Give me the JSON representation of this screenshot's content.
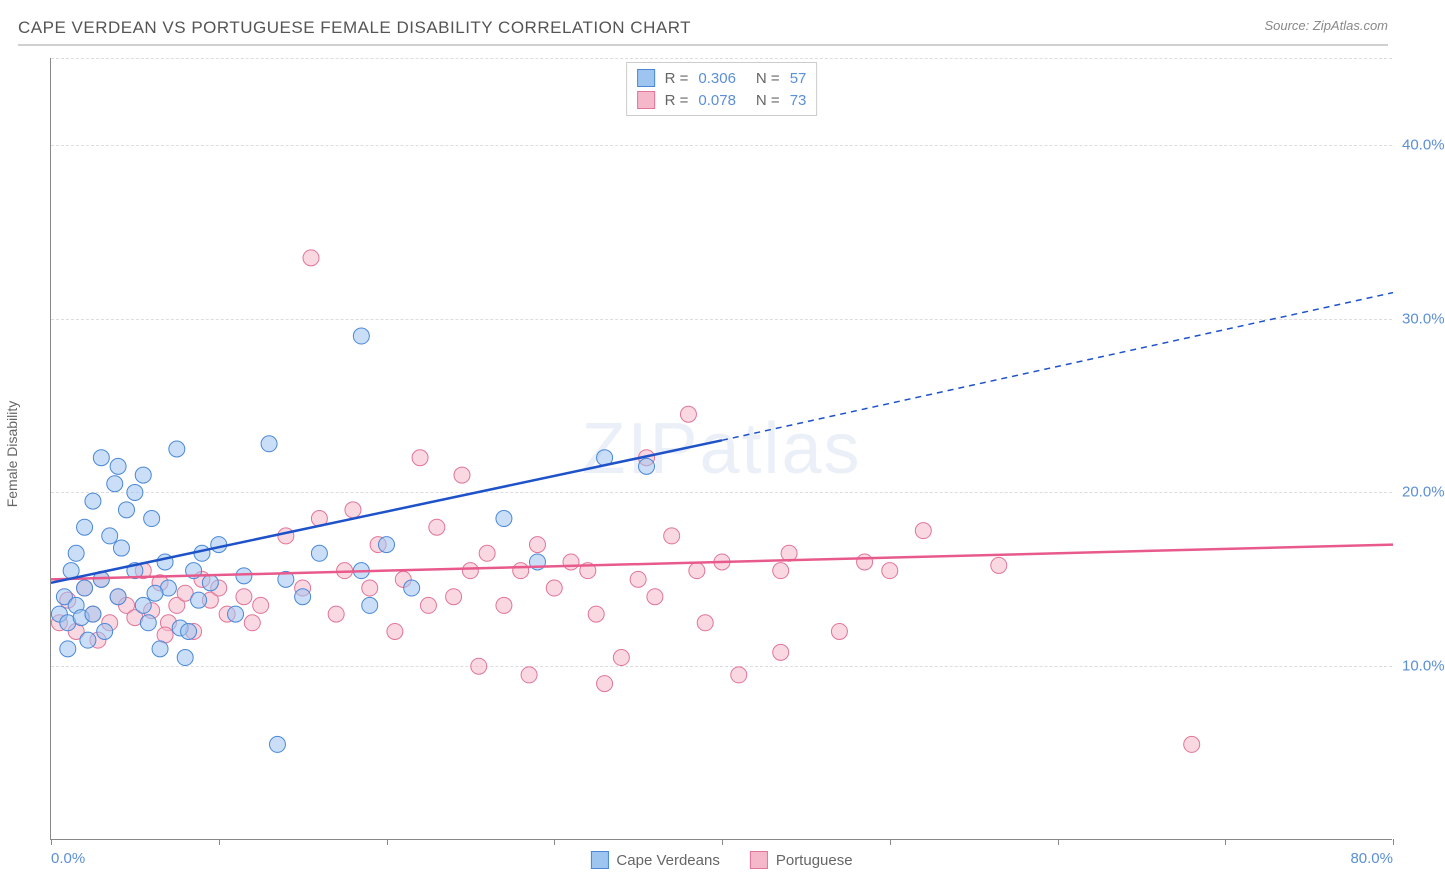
{
  "title": "CAPE VERDEAN VS PORTUGUESE FEMALE DISABILITY CORRELATION CHART",
  "source_label": "Source: ZipAtlas.com",
  "ylabel": "Female Disability",
  "watermark": "ZIPatlas",
  "chart": {
    "type": "scatter",
    "xlim": [
      0,
      80
    ],
    "ylim": [
      0,
      45
    ],
    "xtick_positions": [
      0,
      10,
      20,
      30,
      40,
      50,
      60,
      70,
      80
    ],
    "xtick_labels": {
      "0": "0.0%",
      "80": "80.0%"
    },
    "ytick_positions": [
      10,
      20,
      30,
      40
    ],
    "ytick_labels": [
      "10.0%",
      "20.0%",
      "30.0%",
      "40.0%"
    ],
    "grid_color": "#dddddd",
    "axis_color": "#888888",
    "label_color": "#5b8fd6",
    "background_color": "#ffffff",
    "marker_radius": 8,
    "marker_opacity": 0.55,
    "line_width_solid": 2.5,
    "line_width_dash": 1.5
  },
  "series": {
    "cape_verdeans": {
      "label": "Cape Verdeans",
      "fill": "#9ec5f0",
      "stroke": "#4a88d6",
      "line_color": "#1e52c8",
      "r_value": "0.306",
      "n_value": "57",
      "trend_start": {
        "x": 0,
        "y": 14.8
      },
      "trend_solid_end": {
        "x": 40,
        "y": 23.0
      },
      "trend_dash_end": {
        "x": 80,
        "y": 31.5
      },
      "points": [
        [
          0.5,
          13.0
        ],
        [
          0.8,
          14.0
        ],
        [
          1.0,
          12.5
        ],
        [
          1.2,
          15.5
        ],
        [
          1.5,
          13.5
        ],
        [
          1.5,
          16.5
        ],
        [
          1.8,
          12.8
        ],
        [
          2.0,
          14.5
        ],
        [
          2.0,
          18.0
        ],
        [
          2.5,
          13.0
        ],
        [
          2.5,
          19.5
        ],
        [
          3.0,
          15.0
        ],
        [
          3.0,
          22.0
        ],
        [
          3.5,
          17.5
        ],
        [
          3.8,
          20.5
        ],
        [
          4.0,
          14.0
        ],
        [
          4.0,
          21.5
        ],
        [
          4.5,
          19.0
        ],
        [
          5.0,
          15.5
        ],
        [
          5.0,
          20.0
        ],
        [
          5.5,
          13.5
        ],
        [
          5.5,
          21.0
        ],
        [
          6.0,
          18.5
        ],
        [
          6.5,
          11.0
        ],
        [
          6.8,
          16.0
        ],
        [
          7.0,
          14.5
        ],
        [
          7.5,
          22.5
        ],
        [
          7.7,
          12.2
        ],
        [
          8.0,
          10.5
        ],
        [
          8.5,
          15.5
        ],
        [
          8.8,
          13.8
        ],
        [
          9.5,
          14.8
        ],
        [
          10.0,
          17.0
        ],
        [
          11.0,
          13.0
        ],
        [
          13.0,
          22.8
        ],
        [
          13.5,
          5.5
        ],
        [
          14.0,
          15.0
        ],
        [
          15.0,
          14.0
        ],
        [
          18.5,
          29.0
        ],
        [
          18.5,
          15.5
        ],
        [
          19.0,
          13.5
        ],
        [
          20.0,
          17.0
        ],
        [
          21.5,
          14.5
        ],
        [
          27.0,
          18.5
        ],
        [
          29.0,
          16.0
        ],
        [
          33.0,
          22.0
        ],
        [
          35.5,
          21.5
        ],
        [
          2.2,
          11.5
        ],
        [
          4.2,
          16.8
        ],
        [
          6.2,
          14.2
        ],
        [
          1.0,
          11.0
        ],
        [
          3.2,
          12.0
        ],
        [
          5.8,
          12.5
        ],
        [
          8.2,
          12.0
        ],
        [
          9.0,
          16.5
        ],
        [
          11.5,
          15.2
        ],
        [
          16.0,
          16.5
        ]
      ]
    },
    "portuguese": {
      "label": "Portuguese",
      "fill": "#f5b8ca",
      "stroke": "#e07598",
      "line_color": "#e85a8c",
      "r_value": "0.078",
      "n_value": "73",
      "trend_start": {
        "x": 0,
        "y": 15.0
      },
      "trend_end": {
        "x": 80,
        "y": 17.0
      },
      "points": [
        [
          0.5,
          12.5
        ],
        [
          1.0,
          13.8
        ],
        [
          1.5,
          12.0
        ],
        [
          2.0,
          14.5
        ],
        [
          2.5,
          13.0
        ],
        [
          3.0,
          15.0
        ],
        [
          3.5,
          12.5
        ],
        [
          4.0,
          14.0
        ],
        [
          4.5,
          13.5
        ],
        [
          5.0,
          12.8
        ],
        [
          5.5,
          15.5
        ],
        [
          6.0,
          13.2
        ],
        [
          6.5,
          14.8
        ],
        [
          7.0,
          12.5
        ],
        [
          7.5,
          13.5
        ],
        [
          8.0,
          14.2
        ],
        [
          8.5,
          12.0
        ],
        [
          9.0,
          15.0
        ],
        [
          9.5,
          13.8
        ],
        [
          10.0,
          14.5
        ],
        [
          10.5,
          13.0
        ],
        [
          11.5,
          14.0
        ],
        [
          12.5,
          13.5
        ],
        [
          14.0,
          17.5
        ],
        [
          15.0,
          14.5
        ],
        [
          15.5,
          33.5
        ],
        [
          16.0,
          18.5
        ],
        [
          17.0,
          13.0
        ],
        [
          17.5,
          15.5
        ],
        [
          18.0,
          19.0
        ],
        [
          19.0,
          14.5
        ],
        [
          19.5,
          17.0
        ],
        [
          21.0,
          15.0
        ],
        [
          22.0,
          22.0
        ],
        [
          22.5,
          13.5
        ],
        [
          23.0,
          18.0
        ],
        [
          24.0,
          14.0
        ],
        [
          24.5,
          21.0
        ],
        [
          25.0,
          15.5
        ],
        [
          25.5,
          10.0
        ],
        [
          26.0,
          16.5
        ],
        [
          27.0,
          13.5
        ],
        [
          28.0,
          15.5
        ],
        [
          28.5,
          9.5
        ],
        [
          29.0,
          17.0
        ],
        [
          30.0,
          14.5
        ],
        [
          31.0,
          16.0
        ],
        [
          32.0,
          15.5
        ],
        [
          32.5,
          13.0
        ],
        [
          33.0,
          9.0
        ],
        [
          34.0,
          10.5
        ],
        [
          35.0,
          15.0
        ],
        [
          35.5,
          22.0
        ],
        [
          36.0,
          14.0
        ],
        [
          38.0,
          24.5
        ],
        [
          38.5,
          15.5
        ],
        [
          39.0,
          12.5
        ],
        [
          40.0,
          16.0
        ],
        [
          41.0,
          9.5
        ],
        [
          43.5,
          10.8
        ],
        [
          43.5,
          15.5
        ],
        [
          44.0,
          16.5
        ],
        [
          47.0,
          12.0
        ],
        [
          48.5,
          16.0
        ],
        [
          50.0,
          15.5
        ],
        [
          52.0,
          17.8
        ],
        [
          56.5,
          15.8
        ],
        [
          68.0,
          5.5
        ],
        [
          2.8,
          11.5
        ],
        [
          6.8,
          11.8
        ],
        [
          12.0,
          12.5
        ],
        [
          20.5,
          12.0
        ],
        [
          37.0,
          17.5
        ]
      ]
    }
  },
  "legend_top": {
    "r_label": "R =",
    "n_label": "N ="
  }
}
